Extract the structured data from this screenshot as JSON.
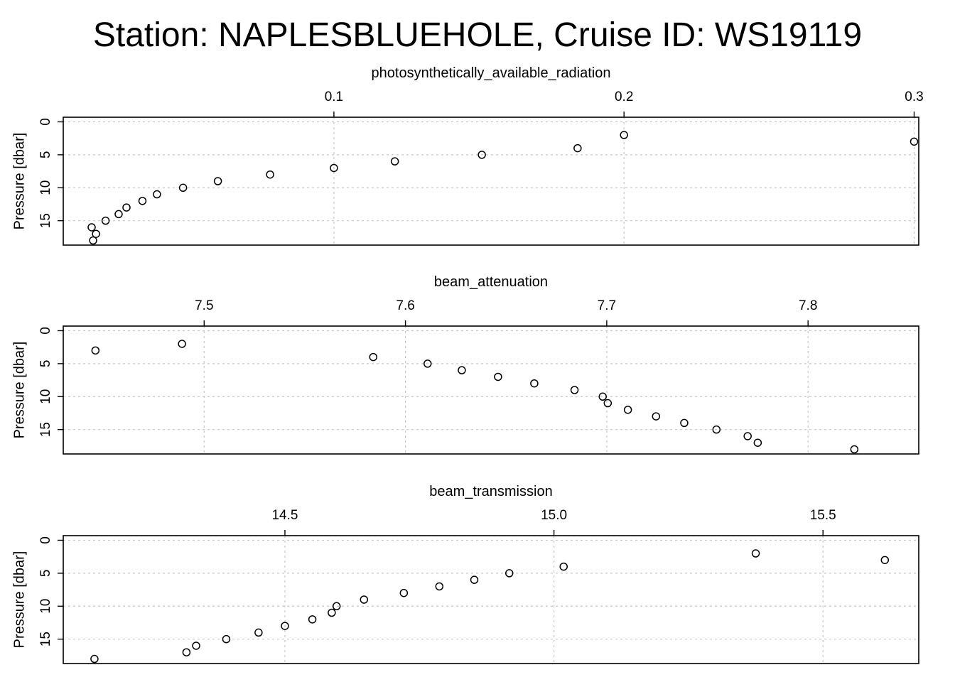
{
  "page": {
    "title": "Station: NAPLESBLUEHOLE, Cruise ID: WS19119"
  },
  "chart_data": [
    {
      "type": "scatter",
      "xlabel": "photosynthetically_available_radiation",
      "ylabel": "Pressure [dbar]",
      "xlim": [
        0.0067,
        0.3016
      ],
      "ylim": [
        18.7,
        -0.7
      ],
      "x_ticks": [
        {
          "value": 0.1,
          "label": "0.1"
        },
        {
          "value": 0.2,
          "label": "0.2"
        },
        {
          "value": 0.3,
          "label": "0.3"
        }
      ],
      "y_ticks": [
        {
          "value": 0,
          "label": "0"
        },
        {
          "value": 5,
          "label": "5"
        },
        {
          "value": 10,
          "label": "10"
        },
        {
          "value": 15,
          "label": "15"
        }
      ],
      "grid": true,
      "points": [
        {
          "x": 0.2,
          "y": 2
        },
        {
          "x": 0.3,
          "y": 3
        },
        {
          "x": 0.184,
          "y": 4
        },
        {
          "x": 0.151,
          "y": 5
        },
        {
          "x": 0.121,
          "y": 6
        },
        {
          "x": 0.1,
          "y": 7
        },
        {
          "x": 0.078,
          "y": 8
        },
        {
          "x": 0.06,
          "y": 9
        },
        {
          "x": 0.048,
          "y": 10
        },
        {
          "x": 0.039,
          "y": 11
        },
        {
          "x": 0.034,
          "y": 12
        },
        {
          "x": 0.0285,
          "y": 13
        },
        {
          "x": 0.0258,
          "y": 14
        },
        {
          "x": 0.0213,
          "y": 15
        },
        {
          "x": 0.0165,
          "y": 16
        },
        {
          "x": 0.018,
          "y": 17
        },
        {
          "x": 0.017,
          "y": 18
        }
      ]
    },
    {
      "type": "scatter",
      "xlabel": "beam_attenuation",
      "ylabel": "Pressure [dbar]",
      "xlim": [
        7.43,
        7.855
      ],
      "ylim": [
        18.7,
        -0.7
      ],
      "x_ticks": [
        {
          "value": 7.5,
          "label": "7.5"
        },
        {
          "value": 7.6,
          "label": "7.6"
        },
        {
          "value": 7.7,
          "label": "7.7"
        },
        {
          "value": 7.8,
          "label": "7.8"
        }
      ],
      "y_ticks": [
        {
          "value": 0,
          "label": "0"
        },
        {
          "value": 5,
          "label": "5"
        },
        {
          "value": 10,
          "label": "10"
        },
        {
          "value": 15,
          "label": "15"
        }
      ],
      "grid": true,
      "points": [
        {
          "x": 7.489,
          "y": 2
        },
        {
          "x": 7.446,
          "y": 3
        },
        {
          "x": 7.584,
          "y": 4
        },
        {
          "x": 7.611,
          "y": 5
        },
        {
          "x": 7.628,
          "y": 6
        },
        {
          "x": 7.646,
          "y": 7
        },
        {
          "x": 7.664,
          "y": 8
        },
        {
          "x": 7.684,
          "y": 9
        },
        {
          "x": 7.698,
          "y": 10
        },
        {
          "x": 7.7005,
          "y": 11
        },
        {
          "x": 7.7105,
          "y": 12
        },
        {
          "x": 7.7245,
          "y": 13
        },
        {
          "x": 7.7385,
          "y": 14
        },
        {
          "x": 7.7545,
          "y": 15
        },
        {
          "x": 7.77,
          "y": 16
        },
        {
          "x": 7.775,
          "y": 17
        },
        {
          "x": 7.823,
          "y": 18
        }
      ]
    },
    {
      "type": "scatter",
      "xlabel": "beam_transmission",
      "ylabel": "Pressure [dbar]",
      "xlim": [
        14.088,
        15.678
      ],
      "ylim": [
        18.7,
        -0.7
      ],
      "x_ticks": [
        {
          "value": 14.5,
          "label": "14.5"
        },
        {
          "value": 15.0,
          "label": "15.0"
        },
        {
          "value": 15.5,
          "label": "15.5"
        }
      ],
      "y_ticks": [
        {
          "value": 0,
          "label": "0"
        },
        {
          "value": 5,
          "label": "5"
        },
        {
          "value": 10,
          "label": "10"
        },
        {
          "value": 15,
          "label": "15"
        }
      ],
      "grid": true,
      "points": [
        {
          "x": 15.375,
          "y": 2
        },
        {
          "x": 15.615,
          "y": 3
        },
        {
          "x": 15.018,
          "y": 4
        },
        {
          "x": 14.917,
          "y": 5
        },
        {
          "x": 14.852,
          "y": 6
        },
        {
          "x": 14.787,
          "y": 7
        },
        {
          "x": 14.721,
          "y": 8
        },
        {
          "x": 14.647,
          "y": 9
        },
        {
          "x": 14.596,
          "y": 10
        },
        {
          "x": 14.587,
          "y": 11
        },
        {
          "x": 14.551,
          "y": 12
        },
        {
          "x": 14.5,
          "y": 13
        },
        {
          "x": 14.451,
          "y": 14
        },
        {
          "x": 14.391,
          "y": 15
        },
        {
          "x": 14.335,
          "y": 16
        },
        {
          "x": 14.317,
          "y": 17
        },
        {
          "x": 14.146,
          "y": 18
        }
      ]
    }
  ]
}
